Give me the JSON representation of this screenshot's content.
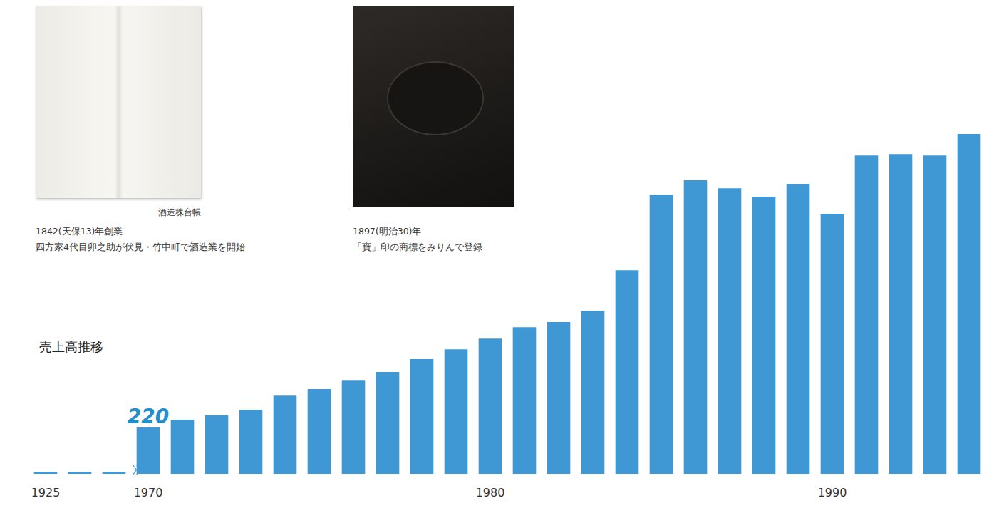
{
  "chart_data": {
    "type": "bar",
    "title": "売上高推移",
    "categories": [
      "1925",
      null,
      null,
      "1970",
      null,
      null,
      null,
      null,
      null,
      null,
      null,
      null,
      null,
      "1980",
      null,
      null,
      null,
      null,
      null,
      null,
      null,
      null,
      null,
      "1990",
      null,
      null,
      null,
      null
    ],
    "values": [
      10,
      10,
      10,
      220,
      257,
      278,
      305,
      372,
      403,
      443,
      484,
      545,
      592,
      643,
      697,
      721,
      775,
      968,
      1327,
      1395,
      1357,
      1317,
      1378,
      1236,
      1513,
      1520,
      1513,
      1615
    ],
    "value_labels": [
      null,
      null,
      null,
      "220",
      null,
      null,
      null,
      null,
      null,
      null,
      null,
      null,
      null,
      null,
      null,
      null,
      null,
      null,
      null,
      null,
      null,
      null,
      null,
      null,
      null,
      null,
      null,
      null
    ],
    "color": "#3f98d4",
    "ylim": [
      0,
      1700
    ],
    "tick_labels": "x",
    "grid": false
  },
  "photos": [
    {
      "caption": "酒造株台帳",
      "lines": [
        "1842(天保13)年創業",
        "四方家4代目卯之助が伏見・竹中町で酒造業を開始"
      ]
    },
    {
      "lines": [
        "1897(明治30)年",
        "「寶」印の商標をみりんで登録"
      ]
    }
  ]
}
